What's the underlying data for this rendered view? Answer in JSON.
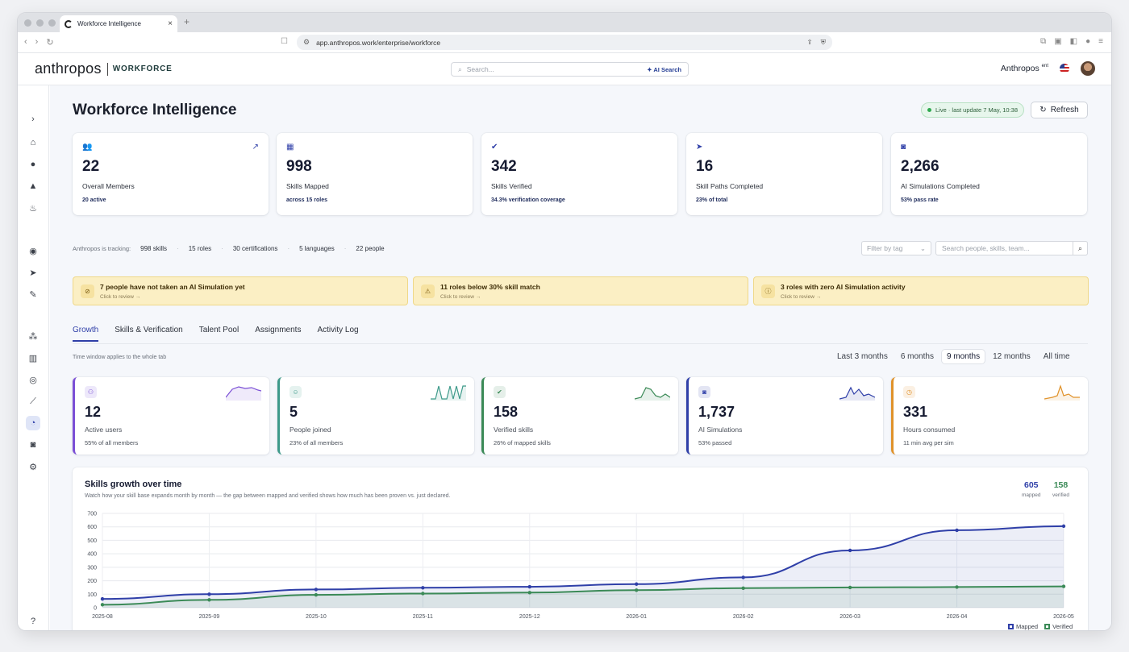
{
  "browser": {
    "tab_title": "Workforce Intelligence",
    "url": "app.anthropos.work/enterprise/workforce"
  },
  "header": {
    "logo": "anthropos",
    "product": "WORKFORCE",
    "search_placeholder": "Search...",
    "ai_search": "✦ AI Search",
    "enterprise": "Anthropos",
    "enterprise_suffix": "ent"
  },
  "page": {
    "title": "Workforce Intelligence",
    "live": "Live · last update 7 May, 10:38",
    "refresh": "Refresh"
  },
  "stats": [
    {
      "icon": "people-icon",
      "value": "22",
      "label": "Overall Members",
      "sub": "20 active"
    },
    {
      "icon": "grid-icon",
      "value": "998",
      "label": "Skills Mapped",
      "sub": "across 15 roles"
    },
    {
      "icon": "check-badge-icon",
      "value": "342",
      "label": "Skills Verified",
      "sub": "34.3% verification coverage"
    },
    {
      "icon": "send-icon",
      "value": "16",
      "label": "Skill Paths Completed",
      "sub": "23% of total"
    },
    {
      "icon": "gamepad-icon",
      "value": "2,266",
      "label": "AI Simulations Completed",
      "sub": "53% pass rate"
    }
  ],
  "tracking": {
    "label": "Anthropos is tracking:",
    "items": [
      "998 skills",
      "15 roles",
      "30 certifications",
      "5 languages",
      "22 people"
    ]
  },
  "filter": {
    "tag_placeholder": "Filter by tag",
    "search_placeholder": "Search people, skills, team..."
  },
  "alerts": [
    {
      "title": "7 people have not taken an AI Simulation yet",
      "sub": "Click to review →"
    },
    {
      "title": "11 roles below 30% skill match",
      "sub": "Click to review →"
    },
    {
      "title": "3 roles with zero AI Simulation activity",
      "sub": "Click to review →"
    }
  ],
  "tabs": [
    "Growth",
    "Skills & Verification",
    "Talent Pool",
    "Assignments",
    "Activity Log"
  ],
  "time_window_note": "Time window applies to the whole tab",
  "ranges": [
    "Last 3 months",
    "6 months",
    "9 months",
    "12 months",
    "All time"
  ],
  "selected_range": "9 months",
  "kpis": [
    {
      "value": "12",
      "label": "Active users",
      "sub": "55% of all members",
      "color": "#7b4fd6"
    },
    {
      "value": "5",
      "label": "People joined",
      "sub": "23% of all members",
      "color": "#3e9a8a"
    },
    {
      "value": "158",
      "label": "Verified skills",
      "sub": "26% of mapped skills",
      "color": "#3b8a57"
    },
    {
      "value": "1,737",
      "label": "AI Simulations",
      "sub": "53% passed",
      "color": "#2f3fa8"
    },
    {
      "value": "331",
      "label": "Hours consumed",
      "sub": "11 min avg per sim",
      "color": "#e0922a"
    }
  ],
  "chart_data": {
    "type": "area",
    "title": "Skills growth over time",
    "subtitle": "Watch how your skill base expands month by month — the gap between mapped and verified shows how much has been proven vs. just declared.",
    "categories": [
      "2025-08",
      "2025-09",
      "2025-10",
      "2025-11",
      "2025-12",
      "2026-01",
      "2026-02",
      "2026-03",
      "2026-04",
      "2026-05"
    ],
    "series": [
      {
        "name": "Mapped",
        "values": [
          65,
          100,
          135,
          148,
          155,
          175,
          225,
          425,
          575,
          605
        ],
        "color": "#2f3fa8"
      },
      {
        "name": "Verified",
        "values": [
          22,
          58,
          95,
          105,
          112,
          130,
          145,
          150,
          153,
          158
        ],
        "color": "#3b8a57"
      }
    ],
    "ylim": [
      0,
      700
    ],
    "yticks": [
      0,
      100,
      200,
      300,
      400,
      500,
      600,
      700
    ],
    "totals": [
      {
        "value": "605",
        "label": "mapped",
        "color": "#2f3fa8"
      },
      {
        "value": "158",
        "label": "verified",
        "color": "#3b8a57"
      }
    ]
  }
}
